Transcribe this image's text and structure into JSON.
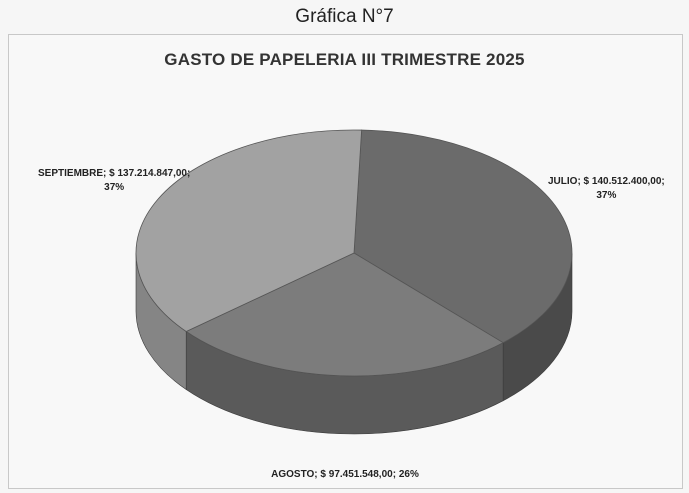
{
  "caption": "Gráfica N°7",
  "chart_data": {
    "type": "pie",
    "title": "GASTO DE PAPELERIA III TRIMESTRE 2025",
    "slices": [
      {
        "label": "JULIO",
        "value": 140512400.0,
        "value_text": "$ 140.512.400,00",
        "percent_text": "37%",
        "color": "#6b6b6b",
        "side_color": "#4a4a4a"
      },
      {
        "label": "AGOSTO",
        "value": 97451548.0,
        "value_text": "$ 97.451.548,00",
        "percent_text": "26%",
        "color": "#7c7c7c",
        "side_color": "#5a5a5a"
      },
      {
        "label": "SEPTIEMBRE",
        "value": 137214847.0,
        "value_text": "$ 137.214.847,00",
        "percent_text": "37%",
        "color": "#a2a2a2",
        "side_color": "#858585"
      }
    ],
    "data_labels": {
      "julio_line1": "JULIO; $ 140.512.400,00;",
      "julio_line2": "37%",
      "septiembre_line1": "SEPTIEMBRE; $ 137.214.847,00;",
      "septiembre_line2": "37%",
      "agosto_line1": "AGOSTO; $ 97.451.548,00; 26%"
    }
  }
}
